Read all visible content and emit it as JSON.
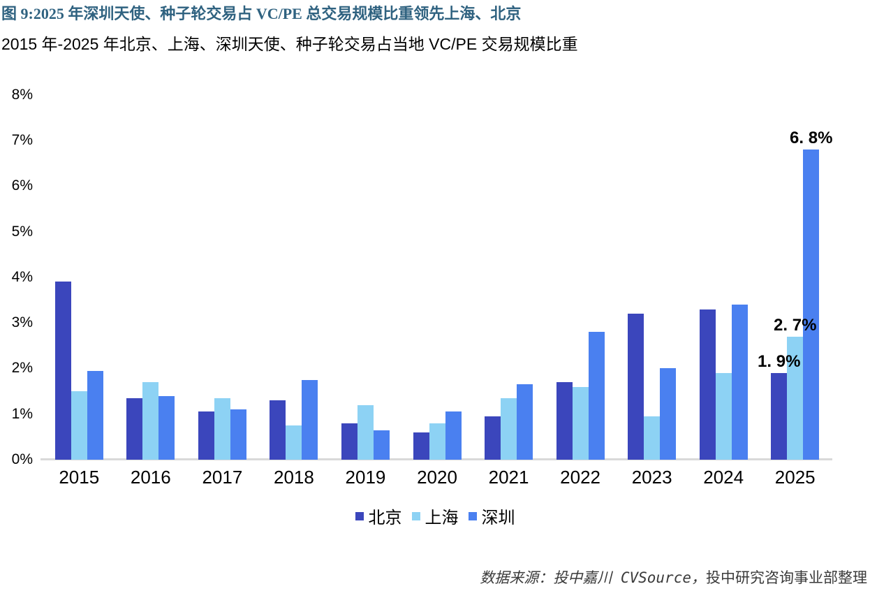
{
  "figure": {
    "title": "图 9:2025 年深圳天使、种子轮交易占 VC/PE 总交易规模比重领先上海、北京",
    "subtitle": "2015 年-2025 年北京、上海、深圳天使、种子轮交易占当地 VC/PE 交易规模比重"
  },
  "source": {
    "italic_part": "数据来源：投中嘉川 CVSource，",
    "regular_part": "投中研究咨询事业部整理"
  },
  "colors": {
    "title_text": "#2F6280",
    "axis_line": "#D9D9D9",
    "source_text": "#3A3A3A",
    "beijing": "#3B46BC",
    "shanghai": "#8DD2F4",
    "shenzhen": "#4A80F0"
  },
  "chart_data": {
    "type": "bar",
    "title": "2015 年-2025 年北京、上海、深圳天使、种子轮交易占当地 VC/PE 交易规模比重",
    "categories": [
      "2015",
      "2016",
      "2017",
      "2018",
      "2019",
      "2020",
      "2021",
      "2022",
      "2023",
      "2024",
      "2025"
    ],
    "series": [
      {
        "name": "北京",
        "color": "#3B46BC",
        "values": [
          3.9,
          1.35,
          1.05,
          1.3,
          0.8,
          0.6,
          0.95,
          1.7,
          3.2,
          3.3,
          1.9
        ]
      },
      {
        "name": "上海",
        "color": "#8DD2F4",
        "values": [
          1.5,
          1.7,
          1.35,
          0.75,
          1.2,
          0.8,
          1.35,
          1.6,
          0.95,
          1.9,
          2.7
        ]
      },
      {
        "name": "深圳",
        "color": "#4A80F0",
        "values": [
          1.95,
          1.4,
          1.1,
          1.75,
          0.65,
          1.05,
          1.65,
          2.8,
          2.0,
          3.4,
          6.8
        ]
      }
    ],
    "xlabel": "",
    "ylabel": "",
    "ylim": [
      0,
      8
    ],
    "y_ticks": [
      "0%",
      "1%",
      "2%",
      "3%",
      "4%",
      "5%",
      "6%",
      "7%",
      "8%"
    ],
    "grid": false,
    "legend_position": "bottom",
    "value_labels": [
      {
        "series": "北京",
        "series_index": 0,
        "category": "2025",
        "category_index": 10,
        "text": "1. 9%",
        "value": 1.9
      },
      {
        "series": "上海",
        "series_index": 1,
        "category": "2025",
        "category_index": 10,
        "text": "2. 7%",
        "value": 2.7
      },
      {
        "series": "深圳",
        "series_index": 2,
        "category": "2025",
        "category_index": 10,
        "text": "6. 8%",
        "value": 6.8
      }
    ]
  }
}
